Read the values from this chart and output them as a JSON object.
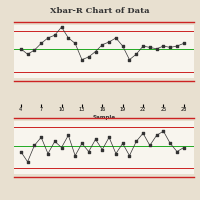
{
  "title": "Xbar-R Chart of Data",
  "xlabel": "Sample",
  "x_ticks": [
    4,
    7,
    10,
    13,
    16,
    19,
    22,
    25,
    28
  ],
  "bg_color": "#e8e0d0",
  "plot_bg": "#f8f5ee",
  "xbar_data": [
    0.1,
    -0.1,
    0.05,
    0.3,
    0.5,
    0.6,
    0.9,
    0.5,
    0.3,
    -0.3,
    -0.2,
    0.0,
    0.25,
    0.35,
    0.5,
    0.2,
    -0.3,
    -0.1,
    0.2,
    0.15,
    0.1,
    0.2,
    0.15,
    0.2,
    0.3
  ],
  "xbar_ucl": 0.75,
  "xbar_lcl": -0.75,
  "xbar_cl": 0.1,
  "r_data": [
    0.3,
    -0.2,
    0.6,
    1.0,
    0.2,
    0.8,
    0.5,
    1.1,
    0.1,
    0.7,
    0.3,
    0.9,
    0.4,
    1.0,
    0.2,
    0.7,
    0.1,
    0.8,
    1.2,
    0.6,
    1.1,
    1.3,
    0.7,
    0.3,
    0.5
  ],
  "r_ucl": 1.5,
  "r_lcl": -0.5,
  "r_cl": 0.55,
  "n_points": 25,
  "ucl_color": "#cc2222",
  "cl_color": "#22aa22",
  "line_color": "#333333",
  "marker_size": 3.5,
  "title_fontsize": 6,
  "tick_fontsize": 3.5,
  "xlabel_fontsize": 4
}
